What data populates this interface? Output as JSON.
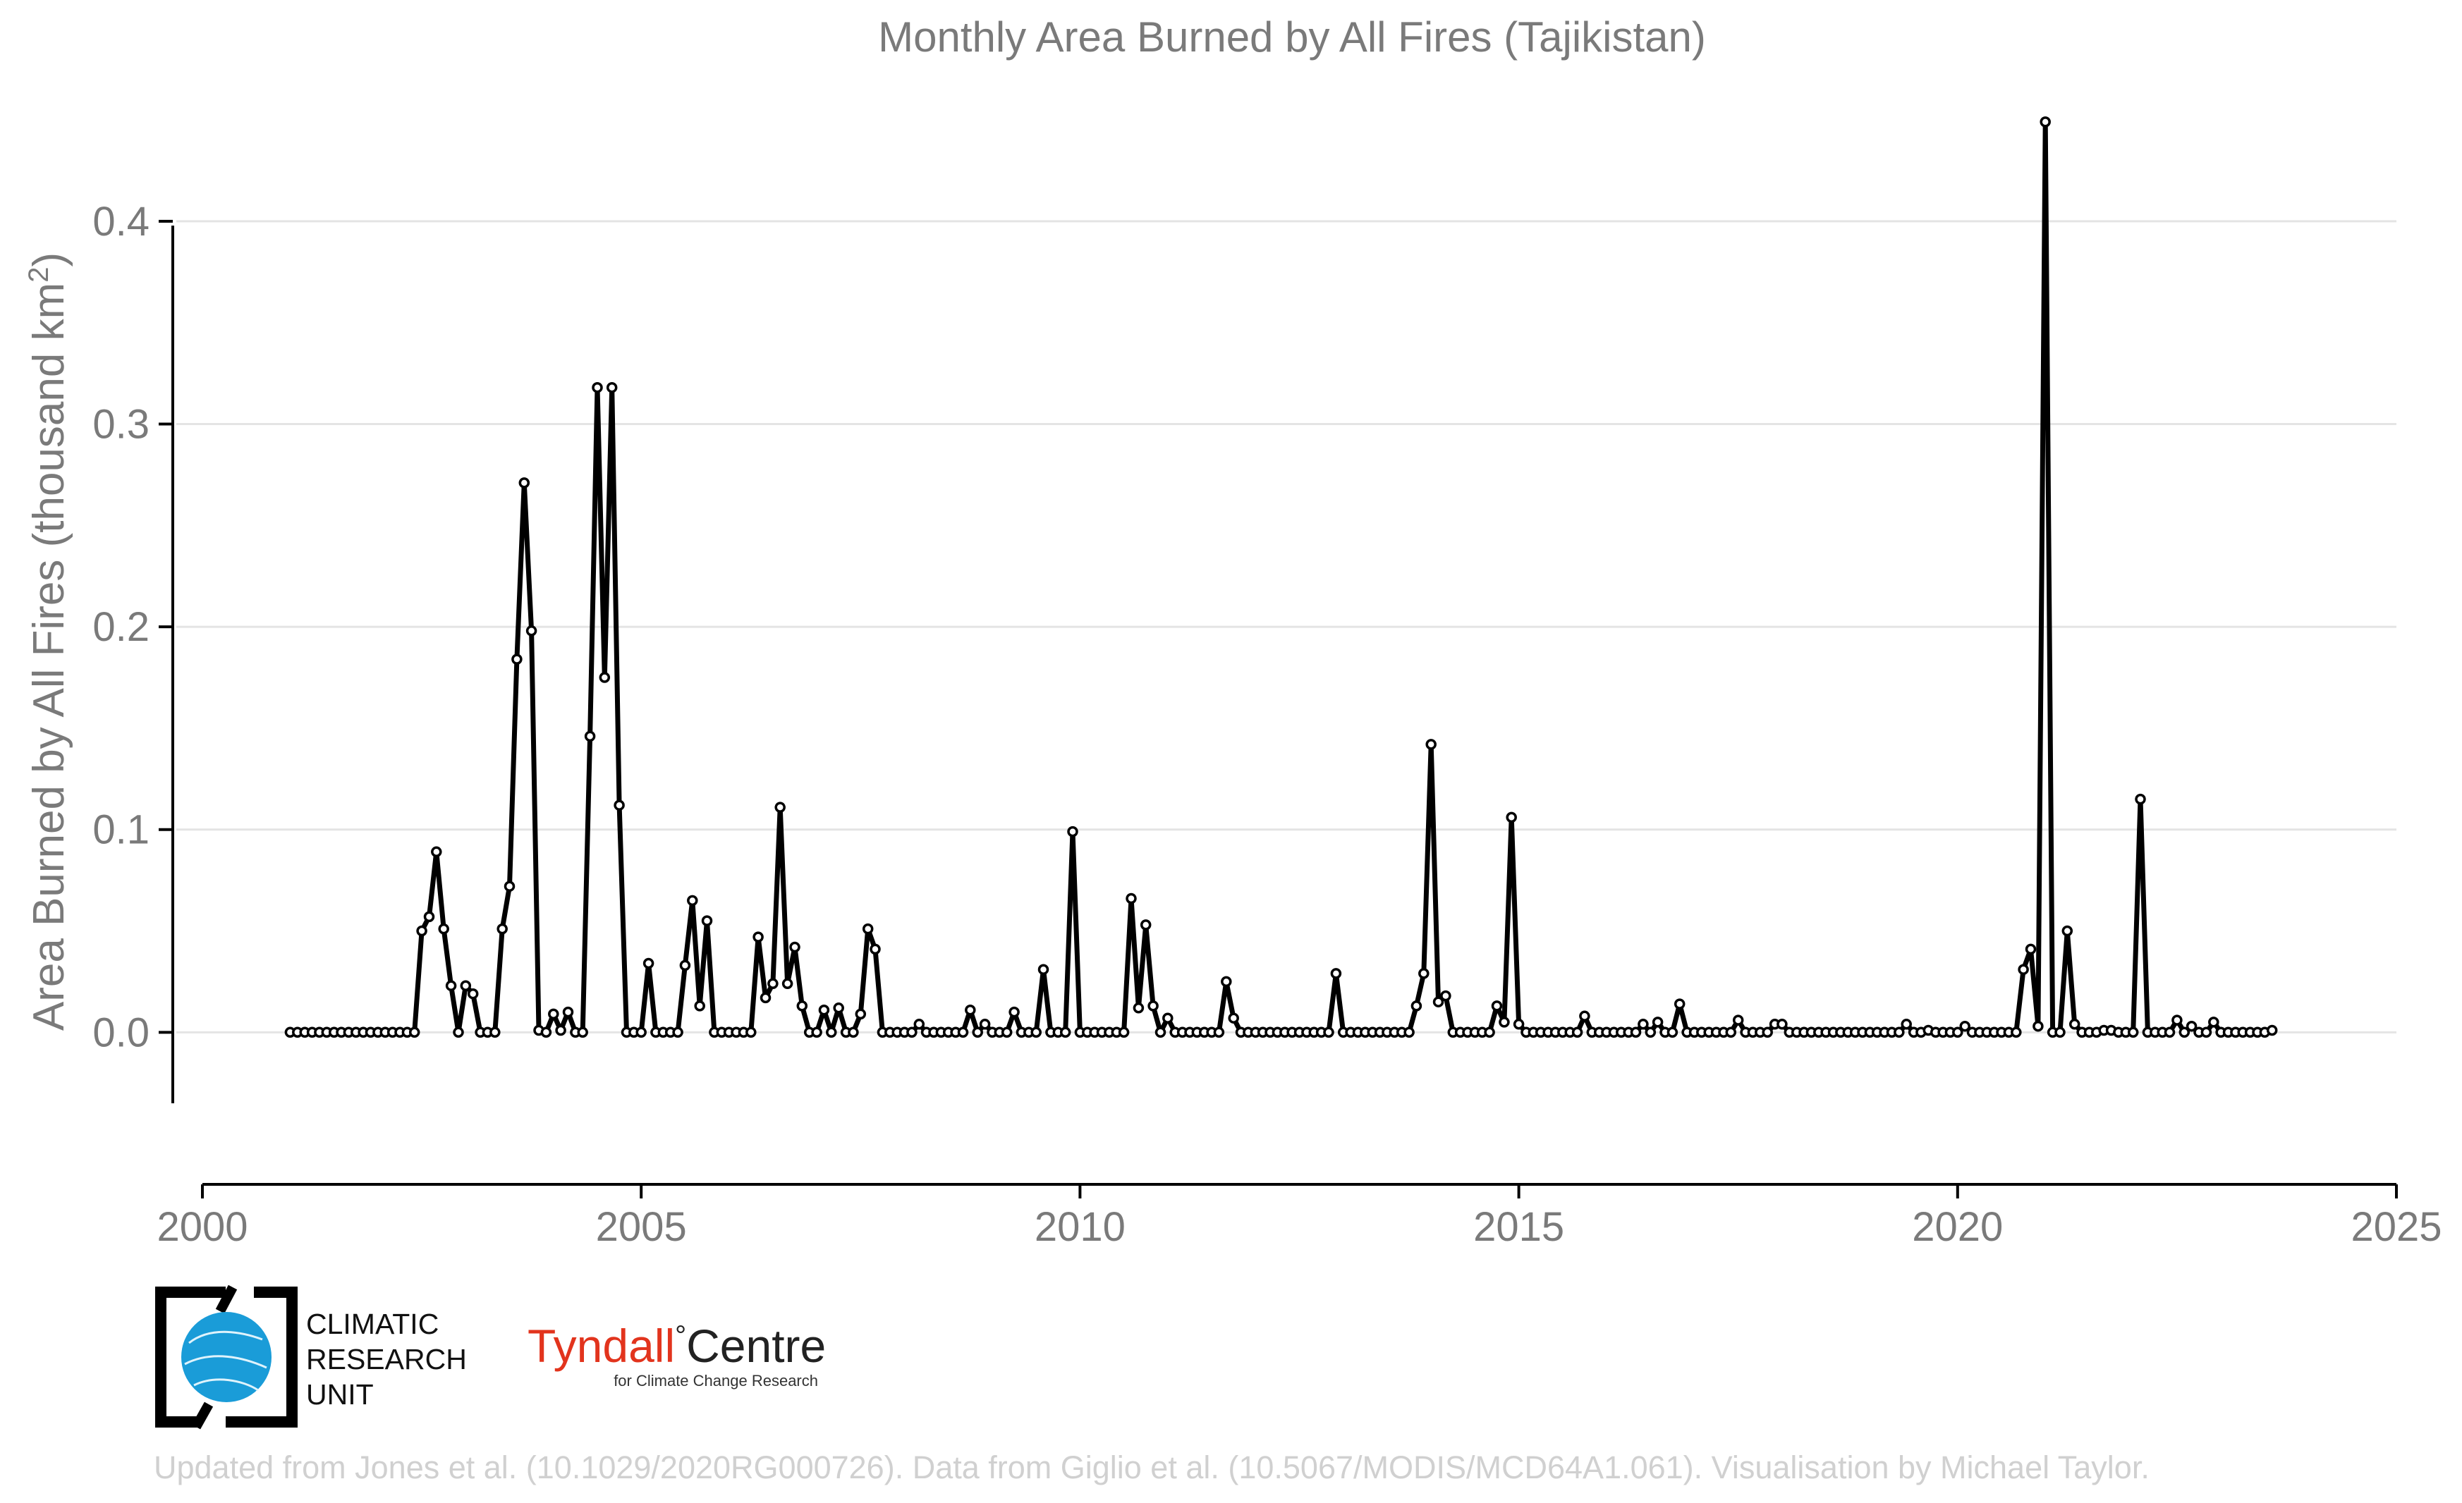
{
  "chart_data": {
    "type": "line",
    "title": "Monthly Area Burned by All Fires (Tajikistan)",
    "ylabel": "Area Burned by All Fires (thousand km",
    "ylabel_sup": "2",
    "ylabel_close": ")",
    "xlabel": "",
    "x_ticks": [
      "2000",
      "2005",
      "2010",
      "2015",
      "2020",
      "2025"
    ],
    "y_ticks": [
      "0.0",
      "0.1",
      "0.2",
      "0.3",
      "0.4"
    ],
    "xlim": [
      2000,
      2025
    ],
    "ylim": [
      -0.035,
      0.45
    ],
    "grid": "horizontal",
    "x_start": "2001-01",
    "x_step": "1 month",
    "series": [
      {
        "color": "#000000",
        "marker": "open-circle",
        "values": [
          0,
          0,
          0,
          0,
          0,
          0,
          0,
          0,
          0,
          0,
          0,
          0,
          0,
          0,
          0,
          0,
          0,
          0,
          0.05,
          0.057,
          0.089,
          0.051,
          0.023,
          0,
          0.023,
          0.019,
          0,
          0,
          0,
          0.051,
          0.072,
          0.184,
          0.271,
          0.198,
          0.001,
          0,
          0.009,
          0.001,
          0.01,
          0,
          0,
          0.146,
          0.318,
          0.175,
          0.318,
          0.112,
          0,
          0,
          0,
          0.034,
          0,
          0,
          0,
          0,
          0.033,
          0.065,
          0.013,
          0.055,
          0,
          0,
          0,
          0,
          0,
          0,
          0.047,
          0.017,
          0.024,
          0.111,
          0.024,
          0.042,
          0.013,
          0,
          0,
          0.011,
          0,
          0.012,
          0,
          0,
          0.009,
          0.051,
          0.041,
          0,
          0,
          0,
          0,
          0,
          0.004,
          0,
          0,
          0,
          0,
          0,
          0,
          0.011,
          0,
          0.004,
          0,
          0,
          0,
          0.01,
          0,
          0,
          0,
          0.031,
          0,
          0,
          0,
          0.099,
          0,
          0,
          0,
          0,
          0,
          0,
          0,
          0.066,
          0.012,
          0.053,
          0.013,
          0,
          0.007,
          0,
          0,
          0,
          0,
          0,
          0,
          0,
          0.025,
          0.007,
          0,
          0,
          0,
          0,
          0,
          0,
          0,
          0,
          0,
          0,
          0,
          0,
          0,
          0.029,
          0,
          0,
          0,
          0,
          0,
          0,
          0,
          0,
          0,
          0,
          0.013,
          0.029,
          0.142,
          0.015,
          0.018,
          0,
          0,
          0,
          0,
          0,
          0,
          0.013,
          0.005,
          0.106,
          0.004,
          0,
          0,
          0,
          0,
          0,
          0,
          0,
          0,
          0.008,
          0,
          0,
          0,
          0,
          0,
          0,
          0,
          0.004,
          0,
          0.005,
          0,
          0,
          0.014,
          0,
          0,
          0,
          0,
          0,
          0,
          0,
          0.006,
          0,
          0,
          0,
          0,
          0.004,
          0.004,
          0,
          0,
          0,
          0,
          0,
          0,
          0,
          0,
          0,
          0,
          0,
          0,
          0,
          0,
          0,
          0,
          0.004,
          0,
          0,
          0.001,
          0,
          0,
          0,
          0,
          0.003,
          0,
          0,
          0,
          0,
          0,
          0,
          0,
          0.031,
          0.041,
          0.003,
          0.449,
          0,
          0,
          0.05,
          0.004,
          0,
          0,
          0,
          0.001,
          0.001,
          0,
          0,
          0,
          0.115,
          0,
          0,
          0,
          0,
          0.006,
          0,
          0.003,
          0,
          0,
          0.005,
          0,
          0,
          0,
          0,
          0,
          0,
          0,
          0.001
        ]
      }
    ]
  },
  "logos": {
    "cru_lines": [
      "CLIMATIC",
      "RESEARCH",
      "UNIT"
    ],
    "tyndall_name": "Tyndall",
    "tyndall_degree": "°",
    "tyndall_centre": "Centre",
    "tyndall_sub": "for Climate Change Research"
  },
  "credit": "Updated from Jones et al. (10.1029/2020RG000726). Data from Giglio et al. (10.5067/MODIS/MCD64A1.061). Visualisation by Michael Taylor.",
  "colors": {
    "line": "#000000",
    "grid": "#e4e4e4",
    "axis_text": "#7a7a7a",
    "cru_blue": "#1a9cd8",
    "tyndall_red": "#e2341d"
  }
}
